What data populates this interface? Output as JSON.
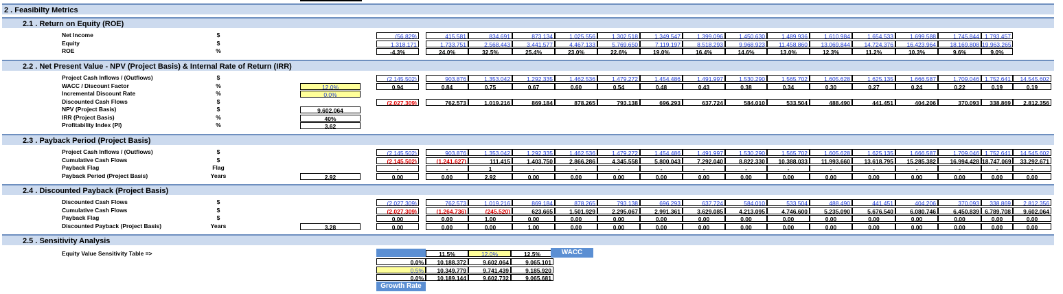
{
  "sections": {
    "s2": "2 .  Feasibilty Metrics",
    "s21": "2.1 .  Return on Equity (ROE)",
    "s22": "2.2 .  Net Present Value - NPV (Project Basis) & Internal Rate of Return (IRR)",
    "s23": "2.3 .  Payback Period (Project Basis)",
    "s24": "2.4 .  Discounted Payback (Project Basis)",
    "s25": "2.5 .  Sensitivity Analysis"
  },
  "roe": {
    "rows": [
      {
        "label": "Net Income",
        "unit": "$",
        "values": [
          "(56,829)",
          "415,581",
          "834,691",
          "873,134",
          "1,025,556",
          "1,302,518",
          "1,349,547",
          "1,399,096",
          "1,450,630",
          "1,489,936",
          "1,610,984",
          "1,654,533",
          "1,699,588",
          "1,745,844",
          "1,793,457"
        ]
      },
      {
        "label": "Equity",
        "unit": "$",
        "values": [
          "1,318,171",
          "1,733,751",
          "2,568,443",
          "3,441,577",
          "4,467,133",
          "5,769,650",
          "7,119,197",
          "8,518,293",
          "9,968,923",
          "11,458,860",
          "13,069,844",
          "14,724,376",
          "16,423,964",
          "18,169,808",
          "19,963,265"
        ]
      },
      {
        "label": "ROE",
        "unit": "%",
        "values": [
          "-4.3%",
          "24.0%",
          "32.5%",
          "25.4%",
          "23.0%",
          "22.6%",
          "19.0%",
          "16.4%",
          "14.6%",
          "13.0%",
          "12.3%",
          "11.2%",
          "10.3%",
          "9.6%",
          "9.0%"
        ]
      }
    ]
  },
  "npv": {
    "rows": [
      {
        "label": "Project Cash Inflows / (Outflows)",
        "unit": "$",
        "input": "",
        "values": [
          "(2,145,502)",
          "903,876",
          "1,353,042",
          "1,292,335",
          "1,462,536",
          "1,479,272",
          "1,454,486",
          "1,491,997",
          "1,530,290",
          "1,565,702",
          "1,605,628",
          "1,625,135",
          "1,666,587",
          "1,709,046",
          "1,752,641",
          "14,545,602"
        ]
      },
      {
        "label": "WACC / Discount Factor",
        "unit": "%",
        "input": "12.0%",
        "values": [
          "0.94",
          "0.84",
          "0.75",
          "0.67",
          "0.60",
          "0.54",
          "0.48",
          "0.43",
          "0.38",
          "0.34",
          "0.30",
          "0.27",
          "0.24",
          "0.22",
          "0.19",
          "0.19"
        ]
      },
      {
        "label": "Incremental  Discount Rate",
        "unit": "%",
        "input": "0.0%",
        "values": []
      },
      {
        "label": "Discounted Cash Flows",
        "unit": "$",
        "input": "",
        "values": [
          "(2,027,309)",
          "762,573",
          "1,019,216",
          "869,184",
          "878,265",
          "793,138",
          "696,293",
          "637,724",
          "584,010",
          "533,504",
          "488,490",
          "441,451",
          "404,206",
          "370,093",
          "338,869",
          "2,812,356"
        ]
      },
      {
        "label": "NPV (Project Basis)",
        "unit": "$",
        "input": "9,602,064",
        "values": []
      },
      {
        "label": "IRR (Project Basis)",
        "unit": "%",
        "input": "40%",
        "values": []
      },
      {
        "label": "Profitability Index (PI)",
        "unit": "%",
        "input": "3.62",
        "values": []
      }
    ]
  },
  "payback": {
    "rows": [
      {
        "label": "Project Cash Inflows / (Outflows)",
        "unit": "$",
        "input": "",
        "values": [
          "(2,145,502)",
          "903,876",
          "1,353,042",
          "1,292,335",
          "1,462,536",
          "1,479,272",
          "1,454,486",
          "1,491,997",
          "1,530,290",
          "1,565,702",
          "1,605,628",
          "1,625,135",
          "1,666,587",
          "1,709,046",
          "1,752,641",
          "14,545,602"
        ]
      },
      {
        "label": "Cumulative Cash Flows",
        "unit": "$",
        "input": "",
        "values": [
          "(2,145,502)",
          "(1,241,627)",
          "111,415",
          "1,403,750",
          "2,866,286",
          "4,345,558",
          "5,800,043",
          "7,292,040",
          "8,822,330",
          "10,388,033",
          "11,993,660",
          "13,618,795",
          "15,285,382",
          "16,994,428",
          "18,747,069",
          "33,292,671"
        ]
      },
      {
        "label": "Payback Flag",
        "unit": "Flag",
        "input": "",
        "values": [
          "-",
          "-",
          "1",
          "-",
          "-",
          "-",
          "-",
          "-",
          "-",
          "-",
          "-",
          "-",
          "-",
          "-",
          "-",
          "-"
        ]
      },
      {
        "label": "Payback Period (Project Basis)",
        "unit": "Years",
        "input": "2.92",
        "values": [
          "0.00",
          "0.00",
          "2.92",
          "0.00",
          "0.00",
          "0.00",
          "0.00",
          "0.00",
          "0.00",
          "0.00",
          "0.00",
          "0.00",
          "0.00",
          "0.00",
          "0.00",
          "0.00"
        ]
      }
    ]
  },
  "discounted": {
    "rows": [
      {
        "label": "Discounted Cash Flows",
        "unit": "$",
        "input": "",
        "values": [
          "(2,027,309)",
          "762,573",
          "1,019,216",
          "869,184",
          "878,265",
          "793,138",
          "696,293",
          "637,724",
          "584,010",
          "533,504",
          "488,490",
          "441,451",
          "404,206",
          "370,093",
          "338,869",
          "2,812,356"
        ]
      },
      {
        "label": "Cumulative Cash Flows",
        "unit": "$",
        "input": "",
        "values": [
          "(2,027,309)",
          "(1,264,736)",
          "(245,520)",
          "623,665",
          "1,501,929",
          "2,295,067",
          "2,991,361",
          "3,629,085",
          "4,213,095",
          "4,746,600",
          "5,235,090",
          "5,676,540",
          "6,080,746",
          "6,450,839",
          "6,789,708",
          "9,602,064"
        ]
      },
      {
        "label": "Payback Flag",
        "unit": "$",
        "input": "",
        "values": [
          "0.00",
          "0.00",
          "1.00",
          "0.00",
          "0.00",
          "0.00",
          "0.00",
          "0.00",
          "0.00",
          "0.00",
          "0.00",
          "0.00",
          "0.00",
          "0.00",
          "0.00",
          "0.00"
        ]
      },
      {
        "label": "Discounted Payback (Project Basis)",
        "unit": "Years",
        "input": "3.28",
        "values": [
          "0.00",
          "0.00",
          "0.00",
          "1.00",
          "0.00",
          "0.00",
          "0.00",
          "0.00",
          "0.00",
          "0.00",
          "0.00",
          "0.00",
          "0.00",
          "0.00",
          "0.00",
          "0.00"
        ]
      }
    ]
  },
  "sensitivity": {
    "label": "Equity Value Sensitivity Table =>",
    "wacc_label": "WACC",
    "growth_label": "Growth Rate",
    "headers": [
      "11.5%",
      "12.0%",
      "12.5%"
    ],
    "rows": [
      {
        "g": "0.0%",
        "values": [
          "10,188,372",
          "9,602,064",
          "9,065,101"
        ]
      },
      {
        "g": "0.5%",
        "values": [
          "10,349,779",
          "9,741,439",
          "9,185,920"
        ]
      },
      {
        "g": "0.0%",
        "values": [
          "10,189,144",
          "9,602,732",
          "9,065,681"
        ]
      }
    ]
  },
  "colors": {
    "band": "#ccdaee",
    "input_blue": "#1f3bd6",
    "negative_red": "#e00000",
    "highlight": "#ffff99",
    "header_blue": "#5b8fd3"
  }
}
